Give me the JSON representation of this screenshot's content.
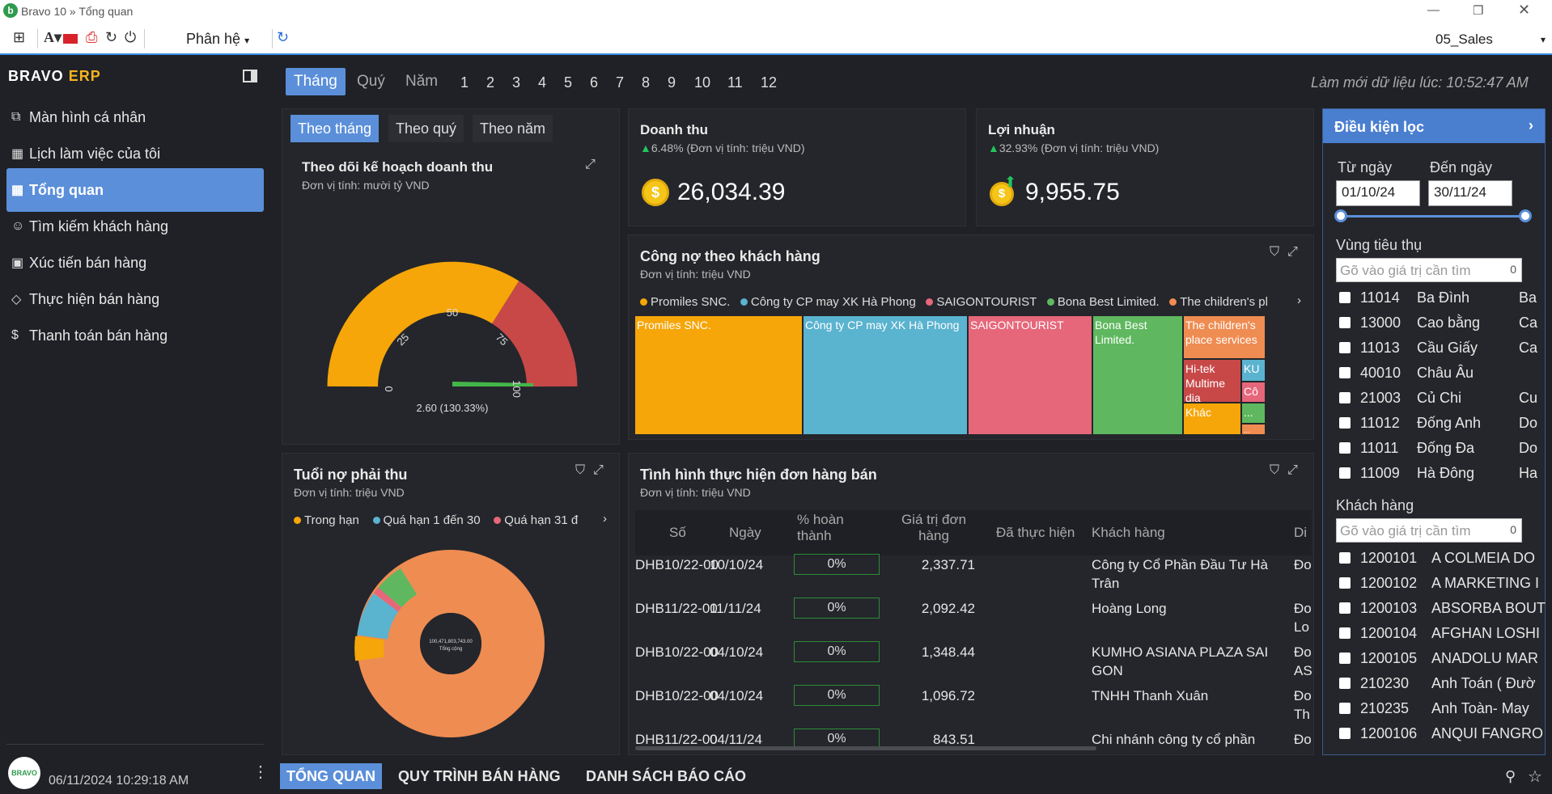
{
  "window": {
    "title": "Bravo 10 » Tổng quan"
  },
  "toolbar": {
    "phanhe_label": "Phân hệ",
    "module": "05_Sales"
  },
  "sidebar": {
    "brand_left": "BRAVO",
    "brand_right": "ERP",
    "items": [
      {
        "label": "Màn hình cá nhân"
      },
      {
        "label": "Lịch làm việc của tôi"
      },
      {
        "label": "Tổng quan"
      },
      {
        "label": "Tìm kiếm khách hàng"
      },
      {
        "label": "Xúc tiến bán hàng"
      },
      {
        "label": "Thực hiện bán hàng"
      },
      {
        "label": "Thanh toán bán hàng"
      }
    ],
    "timestamp": "06/11/2024 10:29:18 AM"
  },
  "period": {
    "tabs": [
      "Tháng",
      "Quý",
      "Năm"
    ],
    "months": [
      "1",
      "2",
      "3",
      "4",
      "5",
      "6",
      "7",
      "8",
      "9",
      "10",
      "11",
      "12"
    ],
    "refresh_text": "Làm mới dữ liệu lúc: 10:52:47 AM"
  },
  "plan": {
    "subtabs": [
      "Theo tháng",
      "Theo quý",
      "Theo năm"
    ],
    "title": "Theo dõi kế hoạch doanh thu",
    "unit": "Đơn vị tính: mười tỷ VND",
    "gauge_ticks": [
      "0",
      "25",
      "50",
      "75",
      "100"
    ],
    "gauge_value_label": "2.60 (130.33%)"
  },
  "revenue": {
    "title": "Doanh thu",
    "change": "6.48% (Đơn vị tính: triệu VND)",
    "value": "26,034.39"
  },
  "profit": {
    "title": "Lợi nhuận",
    "change": "32.93% (Đơn vị tính: triệu VND)",
    "value": "9,955.75"
  },
  "debt": {
    "title": "Công nợ theo khách hàng",
    "unit": "Đơn vị tính: triệu VND",
    "legend": [
      {
        "name": "Promiles SNC.",
        "color": "#f6a609"
      },
      {
        "name": "Công ty CP may XK Hà Phong",
        "color": "#5ab3cf"
      },
      {
        "name": "SAIGONTOURIST",
        "color": "#e6677a"
      },
      {
        "name": "Bona Best Limited.",
        "color": "#5fb85f"
      },
      {
        "name": "The children's pl",
        "color": "#ef8c52"
      }
    ],
    "tiles": [
      "Promiles SNC.",
      "Công ty CP may XK Hà Phong",
      "SAIGONTOURIST",
      "Bona Best Limited.",
      "The children's place services",
      "Hi-tek Multime dia",
      "KU",
      "Cô",
      "Khác",
      "...",
      "..."
    ]
  },
  "aging": {
    "title": "Tuổi nợ phải thu",
    "unit": "Đơn vị tính: triệu VND",
    "legend": [
      {
        "name": "Trong hạn",
        "color": "#f6a609"
      },
      {
        "name": "Quá hạn 1 đến 30",
        "color": "#5ab3cf"
      },
      {
        "name": "Quá hạn 31 đ",
        "color": "#e6677a"
      }
    ],
    "center_value": "100,471,803,743.00",
    "center_label": "Tổng cộng"
  },
  "orders": {
    "title": "Tình hình thực hiện đơn hàng bán",
    "unit": "Đơn vị tính: triệu VND",
    "headers": [
      "Số",
      "Ngày",
      "% hoàn thành",
      "Giá trị đơn hàng",
      "Đã thực hiện",
      "Khách hàng",
      "Di"
    ],
    "rows": [
      {
        "so": "DHB10/22-00",
        "ngay": "10/10/24",
        "pct": "0%",
        "gia": "2,337.71",
        "kh1": "Công ty Cổ Phần Đầu Tư Hà",
        "kh2": "Trân",
        "d1": "Đo",
        "d2": ""
      },
      {
        "so": "DHB11/22-00",
        "ngay": "11/11/24",
        "pct": "0%",
        "gia": "2,092.42",
        "kh1": "Hoàng Long",
        "kh2": "",
        "d1": "Đo",
        "d2": "Lo"
      },
      {
        "so": "DHB10/22-00",
        "ngay": "04/10/24",
        "pct": "0%",
        "gia": "1,348.44",
        "kh1": "KUMHO ASIANA PLAZA SAI",
        "kh2": "GON",
        "d1": "Đo",
        "d2": "AS"
      },
      {
        "so": "DHB10/22-00",
        "ngay": "04/10/24",
        "pct": "0%",
        "gia": "1,096.72",
        "kh1": "TNHH Thanh Xuân",
        "kh2": "",
        "d1": "Đo",
        "d2": "Th"
      },
      {
        "so": "DHB11/22-00",
        "ngay": "04/11/24",
        "pct": "0%",
        "gia": "843.51",
        "kh1": "Chi nhánh công ty cổ phần",
        "kh2": "",
        "d1": "Đo",
        "d2": ""
      }
    ]
  },
  "filter": {
    "title": "Điều kiện lọc",
    "from_label": "Từ ngày",
    "to_label": "Đến ngày",
    "from_value": "01/10/24",
    "to_value": "30/11/24",
    "region_label": "Vùng tiêu thụ",
    "search_placeholder": "Gõ vào giá trị cần tìm",
    "search_count": "0",
    "regions": [
      {
        "code": "11014",
        "name": "Ba Đình",
        "extra": "Ba"
      },
      {
        "code": "13000",
        "name": "Cao bằng",
        "extra": "Ca"
      },
      {
        "code": "11013",
        "name": "Cầu Giấy",
        "extra": "Ca"
      },
      {
        "code": "40010",
        "name": "Châu Âu",
        "extra": ""
      },
      {
        "code": "21003",
        "name": "Củ Chi",
        "extra": "Cu"
      },
      {
        "code": "11012",
        "name": "Đống Anh",
        "extra": "Do"
      },
      {
        "code": "11011",
        "name": "Đống Đa",
        "extra": "Do"
      },
      {
        "code": "11009",
        "name": "Hà Đông",
        "extra": "Ha"
      }
    ],
    "customer_label": "Khách hàng",
    "customers": [
      {
        "code": "1200101",
        "name": "A COLMEIA DO"
      },
      {
        "code": "1200102",
        "name": "A MARKETING I"
      },
      {
        "code": "1200103",
        "name": "ABSORBA BOUT"
      },
      {
        "code": "1200104",
        "name": "AFGHAN LOSHI"
      },
      {
        "code": "1200105",
        "name": "ANADOLU MAR"
      },
      {
        "code": "210230",
        "name": "Anh Toán ( Đườ"
      },
      {
        "code": "210235",
        "name": "Anh Toàn- May"
      },
      {
        "code": "1200106",
        "name": "ANQUI FANGRO"
      }
    ]
  },
  "bottom_tabs": [
    "TỔNG QUAN",
    "QUY TRÌNH BÁN HÀNG",
    "DANH SÁCH BÁO CÁO"
  ]
}
